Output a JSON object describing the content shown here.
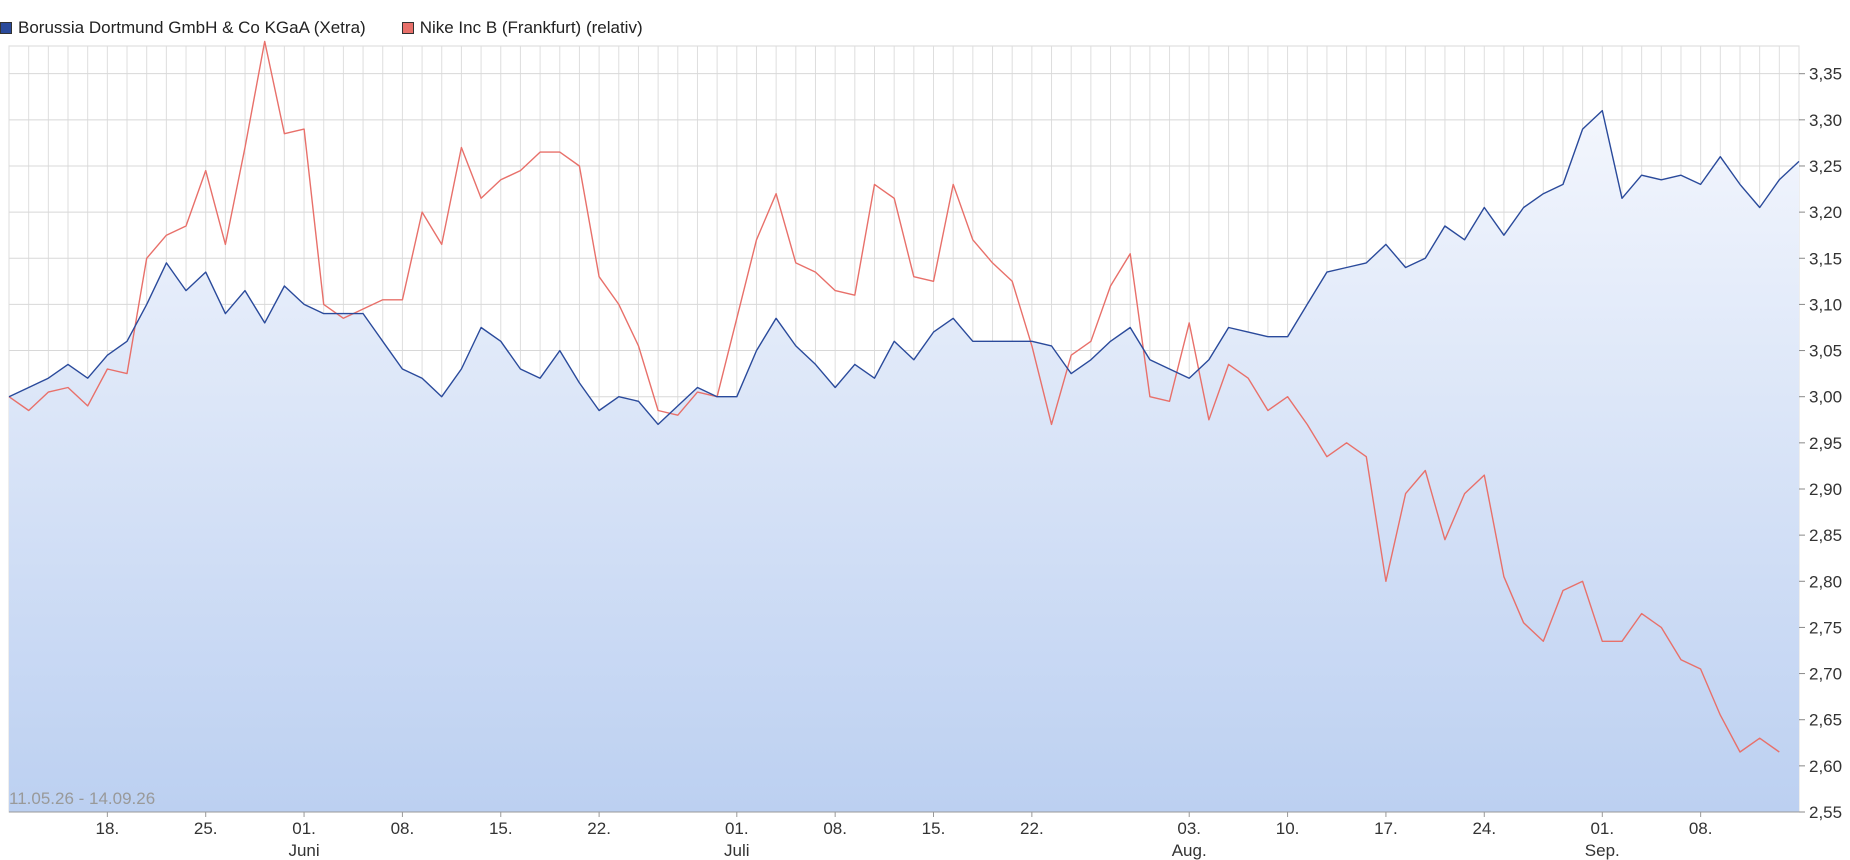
{
  "legend": [
    {
      "label": "Borussia Dortmund GmbH & Co KGaA (Xetra)",
      "color": "#2a4a9b"
    },
    {
      "label": "Nike Inc B (Frankfurt) (relativ)",
      "color": "#e8706a"
    }
  ],
  "date_range": "11.05.26 - 14.09.26",
  "chart_data": {
    "type": "line",
    "title": "",
    "xlabel": "",
    "ylabel": "",
    "ylim": [
      2.55,
      3.38
    ],
    "grid": true,
    "legend_position": "top-left",
    "y_ticks": [
      "3,35",
      "3,30",
      "3,25",
      "3,20",
      "3,15",
      "3,10",
      "3,05",
      "3,00",
      "2,95",
      "2,90",
      "2,85",
      "2,80",
      "2,75",
      "2,70",
      "2,65",
      "2,60",
      "2,55"
    ],
    "x_ticks": [
      {
        "index": 5,
        "label": "18.",
        "sub": ""
      },
      {
        "index": 10,
        "label": "25.",
        "sub": ""
      },
      {
        "index": 15,
        "label": "01.",
        "sub": "Juni"
      },
      {
        "index": 20,
        "label": "08.",
        "sub": ""
      },
      {
        "index": 25,
        "label": "15.",
        "sub": ""
      },
      {
        "index": 30,
        "label": "22.",
        "sub": ""
      },
      {
        "index": 37,
        "label": "01.",
        "sub": "Juli"
      },
      {
        "index": 42,
        "label": "08.",
        "sub": ""
      },
      {
        "index": 47,
        "label": "15.",
        "sub": ""
      },
      {
        "index": 52,
        "label": "22.",
        "sub": ""
      },
      {
        "index": 60,
        "label": "03.",
        "sub": "Aug."
      },
      {
        "index": 65,
        "label": "10.",
        "sub": ""
      },
      {
        "index": 70,
        "label": "17.",
        "sub": ""
      },
      {
        "index": 75,
        "label": "24.",
        "sub": ""
      },
      {
        "index": 81,
        "label": "01.",
        "sub": "Sep."
      },
      {
        "index": 86,
        "label": "08.",
        "sub": ""
      }
    ],
    "series": [
      {
        "name": "Borussia Dortmund GmbH & Co KGaA (Xetra)",
        "color": "#2a4a9b",
        "fill": true,
        "values": [
          3.0,
          3.01,
          3.02,
          3.035,
          3.02,
          3.045,
          3.06,
          3.1,
          3.145,
          3.115,
          3.135,
          3.09,
          3.115,
          3.08,
          3.12,
          3.1,
          3.09,
          3.09,
          3.09,
          3.06,
          3.03,
          3.02,
          3.0,
          3.03,
          3.075,
          3.06,
          3.03,
          3.02,
          3.05,
          3.015,
          2.985,
          3.0,
          2.995,
          2.97,
          2.99,
          3.01,
          3.0,
          3.0,
          3.05,
          3.085,
          3.055,
          3.035,
          3.01,
          3.035,
          3.02,
          3.06,
          3.04,
          3.07,
          3.085,
          3.06,
          3.06,
          3.06,
          3.06,
          3.055,
          3.025,
          3.04,
          3.06,
          3.075,
          3.04,
          3.03,
          3.02,
          3.04,
          3.075,
          3.07,
          3.065,
          3.065,
          3.1,
          3.135,
          3.14,
          3.145,
          3.165,
          3.14,
          3.15,
          3.185,
          3.17,
          3.205,
          3.175,
          3.205,
          3.22,
          3.23,
          3.29,
          3.31,
          3.215,
          3.24,
          3.235,
          3.24,
          3.23,
          3.26,
          3.23,
          3.205,
          3.235,
          3.255
        ]
      },
      {
        "name": "Nike Inc B (Frankfurt) (relativ)",
        "color": "#e8706a",
        "fill": false,
        "values": [
          3.0,
          2.985,
          3.005,
          3.01,
          2.99,
          3.03,
          3.025,
          3.15,
          3.175,
          3.185,
          3.245,
          3.165,
          3.27,
          3.385,
          3.285,
          3.29,
          3.1,
          3.085,
          3.095,
          3.105,
          3.105,
          3.2,
          3.165,
          3.27,
          3.215,
          3.235,
          3.245,
          3.265,
          3.265,
          3.25,
          3.13,
          3.1,
          3.055,
          2.985,
          2.98,
          3.005,
          3.0,
          3.085,
          3.17,
          3.22,
          3.145,
          3.135,
          3.115,
          3.11,
          3.23,
          3.215,
          3.13,
          3.125,
          3.23,
          3.17,
          3.145,
          3.125,
          3.055,
          2.97,
          3.045,
          3.06,
          3.12,
          3.155,
          3.0,
          2.995,
          3.08,
          2.975,
          3.035,
          3.02,
          2.985,
          3.0,
          2.97,
          2.935,
          2.95,
          2.935,
          2.8,
          2.895,
          2.92,
          2.845,
          2.895,
          2.915,
          2.805,
          2.755,
          2.735,
          2.79,
          2.8,
          2.735,
          2.735,
          2.765,
          2.75,
          2.715,
          2.705,
          2.655,
          2.615,
          2.63,
          2.615
        ]
      }
    ]
  }
}
